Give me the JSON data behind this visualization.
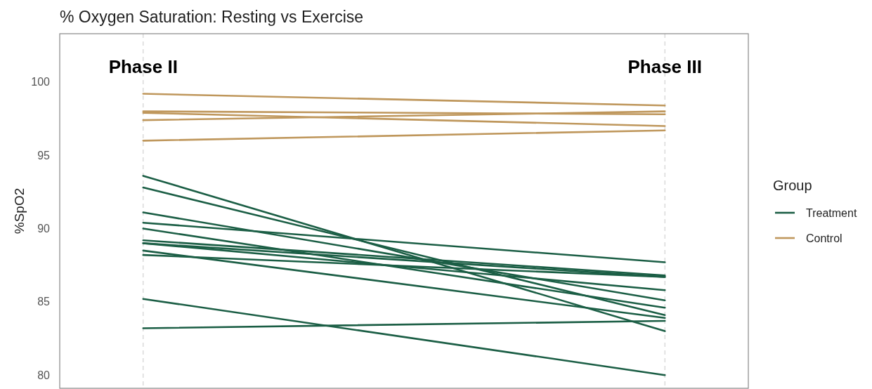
{
  "chart_data": {
    "type": "line",
    "title": "% Oxygen Saturation: Resting vs Exercise",
    "ylabel": "%SpO2",
    "legend_title": "Group",
    "categories": [
      "Phase II",
      "Phase III"
    ],
    "ylim": [
      79.1,
      103.3
    ],
    "yticks": [
      80,
      85,
      90,
      95,
      100
    ],
    "grid": "x",
    "legend": "right",
    "marker": "none",
    "line_style": "solid",
    "series": [
      {
        "name": "Treatment",
        "color": "#1b5e45",
        "values": [
          93.6,
          83.0
        ]
      },
      {
        "color": "#1b5e45",
        "values": [
          92.8,
          84.1
        ]
      },
      {
        "color": "#1b5e45",
        "values": [
          91.1,
          85.1
        ]
      },
      {
        "color": "#1b5e45",
        "values": [
          90.4,
          87.7
        ]
      },
      {
        "color": "#1b5e45",
        "values": [
          90.0,
          84.6
        ]
      },
      {
        "color": "#1b5e45",
        "values": [
          89.2,
          86.8
        ]
      },
      {
        "color": "#1b5e45",
        "values": [
          89.0,
          86.7
        ]
      },
      {
        "color": "#1b5e45",
        "values": [
          89.0,
          85.8
        ]
      },
      {
        "color": "#1b5e45",
        "values": [
          88.5,
          83.9
        ]
      },
      {
        "color": "#1b5e45",
        "values": [
          88.2,
          86.7
        ]
      },
      {
        "color": "#1b5e45",
        "values": [
          85.2,
          80.0
        ]
      },
      {
        "color": "#1b5e45",
        "values": [
          83.2,
          83.7
        ]
      },
      {
        "name": "Control",
        "color": "#bf975c",
        "values": [
          99.2,
          98.4
        ]
      },
      {
        "color": "#bf975c",
        "values": [
          98.0,
          97.8
        ]
      },
      {
        "color": "#bf975c",
        "values": [
          97.9,
          97.0
        ]
      },
      {
        "color": "#bf975c",
        "values": [
          97.4,
          98.0
        ]
      },
      {
        "color": "#bf975c",
        "values": [
          96.0,
          96.7
        ]
      }
    ]
  }
}
